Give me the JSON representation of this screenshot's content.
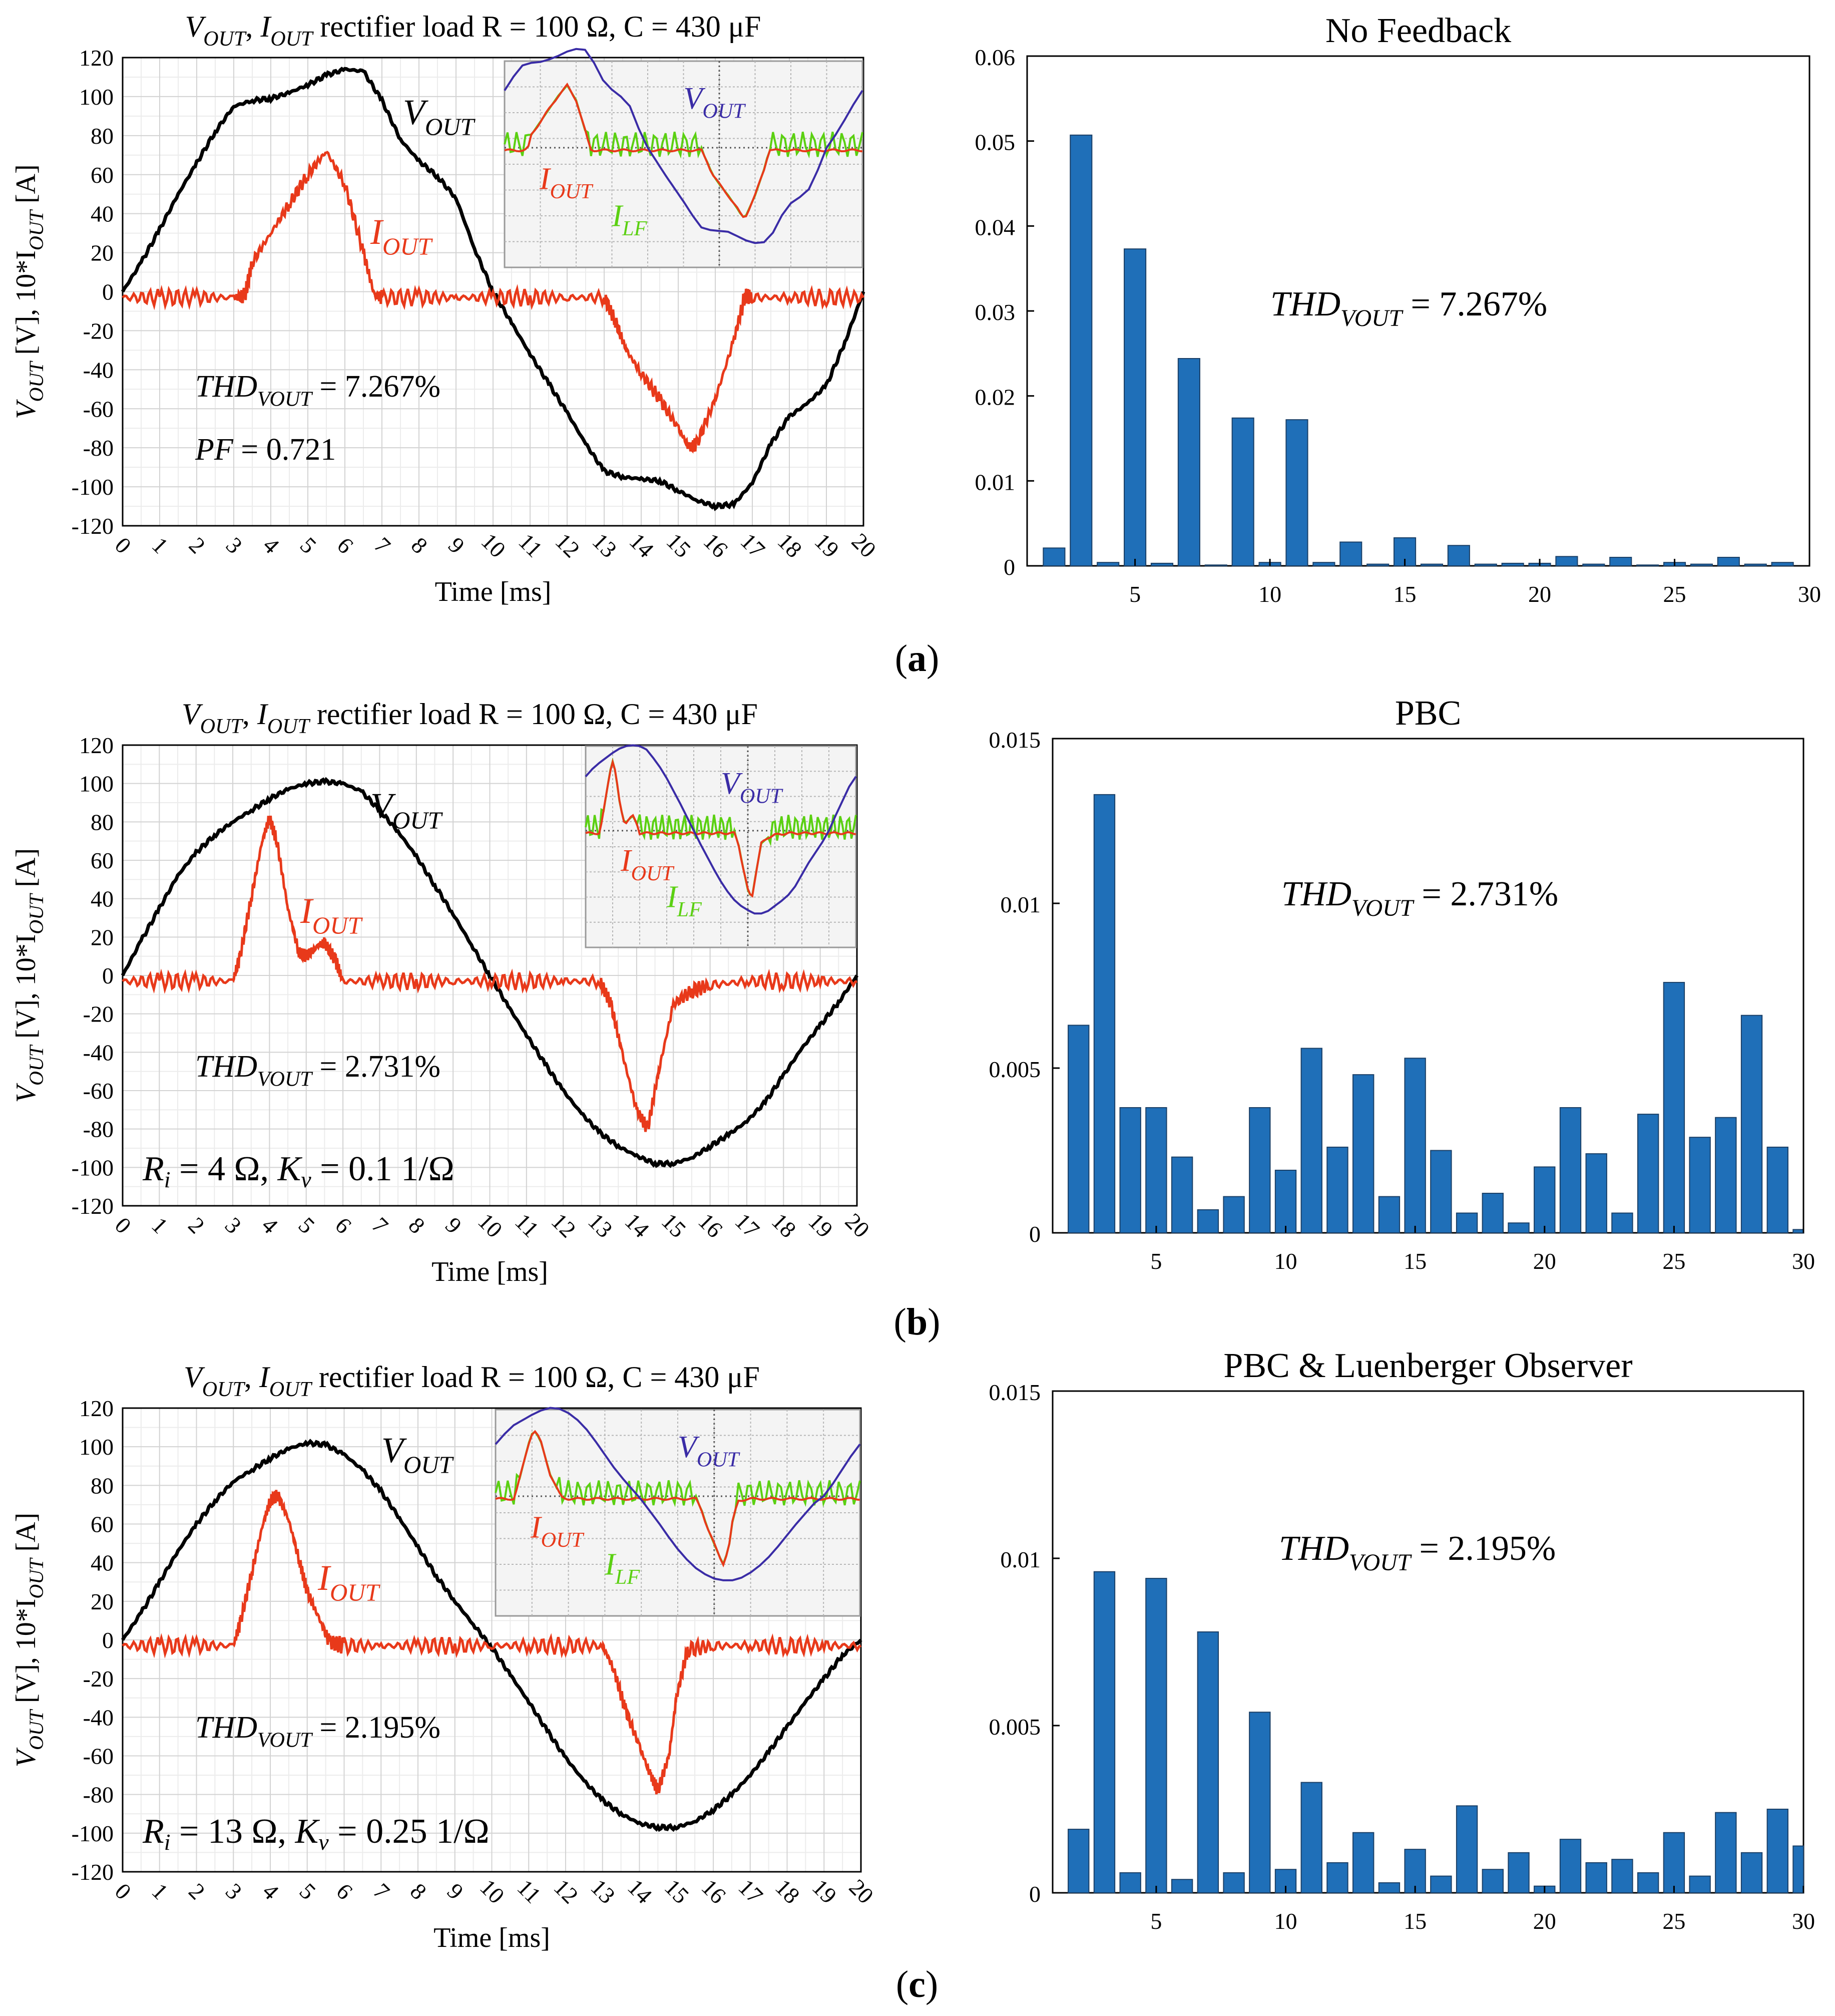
{
  "colors": {
    "vout": "#000000",
    "iout": "#e8391a",
    "bar": "#1f6fb8",
    "scope_vout": "#3a2ca6",
    "scope_ilf": "#5bd012",
    "scope_iout": "#e8391a"
  },
  "captions": [
    "(a)",
    "(b)",
    "(c)"
  ],
  "chart_data": [
    {
      "type": "line",
      "panel": "a",
      "title_parts": {
        "v": "V",
        "v_sub": "OUT",
        "sep": ",",
        "i": "I",
        "i_sub": "OUT",
        "rest": "rectifier load R = 100 Ω, C = 430 μF"
      },
      "ylabel_parts": {
        "v": "V",
        "v_sub": "OUT",
        "mid": "[V], 10*I",
        "i_sub": "OUT",
        "end": "[A]"
      },
      "xlabel": "Time [ms]",
      "xlim": [
        0,
        20
      ],
      "ylim": [
        -120,
        120
      ],
      "xticks": [
        "0",
        "1",
        "2",
        "3",
        "4",
        "5",
        "6",
        "7",
        "8",
        "9",
        "10",
        "11",
        "12",
        "13",
        "14",
        "15",
        "16",
        "17",
        "18",
        "19",
        "20"
      ],
      "yticks": [
        "120",
        "100",
        "80",
        "60",
        "40",
        "20",
        "0",
        "-20",
        "-40",
        "-60",
        "-80",
        "-100",
        "-120"
      ],
      "grid": true,
      "series": [
        {
          "name": "V_OUT",
          "x": [
            0,
            0.5,
            1,
            1.5,
            2,
            2.5,
            3,
            3.5,
            4,
            4.5,
            5,
            5.5,
            6,
            6.5,
            7,
            7.5,
            8,
            8.5,
            9,
            9.5,
            10,
            10.5,
            11,
            11.5,
            12,
            12.5,
            13,
            13.5,
            14,
            14.5,
            15,
            15.5,
            16,
            16.5,
            17,
            17.5,
            18,
            18.5,
            19,
            19.5,
            20
          ],
          "values": [
            0,
            15,
            32,
            50,
            66,
            82,
            95,
            98,
            99,
            102,
            106,
            111,
            114,
            113,
            98,
            78,
            67,
            59,
            48,
            22,
            0,
            -16,
            -32,
            -47,
            -62,
            -78,
            -92,
            -95,
            -96,
            -97,
            -102,
            -107,
            -110,
            -109,
            -98,
            -78,
            -64,
            -57,
            -48,
            -26,
            0
          ]
        },
        {
          "name": "I_OUT",
          "x": [
            0,
            1,
            2,
            3,
            3.3,
            3.5,
            4,
            4.5,
            5,
            5.5,
            6,
            6.5,
            6.8,
            7,
            8,
            9,
            10,
            11,
            12,
            13,
            13.3,
            13.6,
            14,
            14.5,
            15,
            15.3,
            15.5,
            16,
            16.5,
            16.8,
            17,
            18,
            19,
            20
          ],
          "values": [
            -3,
            -3,
            -3,
            -3,
            -2,
            15,
            30,
            45,
            60,
            72,
            55,
            20,
            -2,
            -3,
            -3,
            -3,
            -3,
            -3,
            -3,
            -3,
            -15,
            -30,
            -42,
            -55,
            -70,
            -80,
            -78,
            -55,
            -25,
            -2,
            -3,
            -3,
            -3,
            -3
          ]
        }
      ],
      "annotations": {
        "vout_label": {
          "v": "V",
          "sub": "OUT"
        },
        "iout_label": {
          "v": "I",
          "sub": "OUT"
        },
        "thd": {
          "v": "THD",
          "sub": "VOUT",
          "value": "= 7.267%"
        },
        "extra": "PF = 0.721"
      },
      "inset_labels": {
        "vout": {
          "v": "V",
          "sub": "OUT"
        },
        "iout": {
          "v": "I",
          "sub": "OUT"
        },
        "ilf": {
          "v": "I",
          "sub": "LF"
        }
      }
    },
    {
      "type": "bar",
      "panel": "a",
      "title": "No Feedback",
      "categories": [
        2,
        3,
        4,
        5,
        6,
        7,
        8,
        9,
        10,
        11,
        12,
        13,
        14,
        15,
        16,
        17,
        18,
        19,
        20,
        21,
        22,
        23,
        24,
        25,
        26,
        27,
        28,
        29
      ],
      "values": [
        0.0021,
        0.0507,
        0.0004,
        0.0373,
        0.0003,
        0.0244,
        0.0001,
        0.0174,
        0.0004,
        0.0172,
        0.0004,
        0.0028,
        0.0002,
        0.0033,
        0.0002,
        0.0024,
        0.0002,
        0.0003,
        0.0003,
        0.0011,
        0.0002,
        0.001,
        0.0001,
        0.0004,
        0.0002,
        0.001,
        0.0002,
        0.0004
      ],
      "xlim": [
        1,
        30
      ],
      "ylim": [
        0,
        0.06
      ],
      "xticks": [
        "5",
        "10",
        "15",
        "20",
        "25",
        "30"
      ],
      "yticks": [
        "0",
        "0.01",
        "0.02",
        "0.03",
        "0.04",
        "0.05",
        "0.06"
      ],
      "thd": {
        "v": "THD",
        "sub": "VOUT",
        "value": "= 7.267%"
      }
    },
    {
      "type": "line",
      "panel": "b",
      "title_parts": {
        "v": "V",
        "v_sub": "OUT",
        "sep": ",",
        "i": "I",
        "i_sub": "OUT",
        "rest": "rectifier load R = 100 Ω, C = 430 μF"
      },
      "ylabel_parts": {
        "v": "V",
        "v_sub": "OUT",
        "mid": "[V], 10*I",
        "i_sub": "OUT",
        "end": "[A]"
      },
      "xlabel": "Time [ms]",
      "xlim": [
        0,
        20
      ],
      "ylim": [
        -120,
        120
      ],
      "xticks": [
        "0",
        "1",
        "2",
        "3",
        "4",
        "5",
        "6",
        "7",
        "8",
        "9",
        "10",
        "11",
        "12",
        "13",
        "14",
        "15",
        "16",
        "17",
        "18",
        "19",
        "20"
      ],
      "yticks": [
        "120",
        "100",
        "80",
        "60",
        "40",
        "20",
        "0",
        "-20",
        "-40",
        "-60",
        "-80",
        "-100",
        "-120"
      ],
      "grid": true,
      "series": [
        {
          "name": "V_OUT",
          "x": [
            0,
            0.5,
            1,
            1.5,
            2,
            2.5,
            3,
            3.5,
            4,
            4.5,
            5,
            5.5,
            6,
            6.5,
            7,
            7.5,
            8,
            8.5,
            9,
            9.5,
            10,
            10.5,
            11,
            11.5,
            12,
            12.5,
            13,
            13.5,
            14,
            14.5,
            15,
            15.5,
            16,
            16.5,
            17,
            17.5,
            18,
            18.5,
            19,
            19.5,
            20
          ],
          "values": [
            0,
            18,
            35,
            52,
            64,
            73,
            80,
            86,
            92,
            97,
            100,
            101,
            100,
            96,
            86,
            75,
            62,
            47,
            32,
            16,
            0,
            -16,
            -31,
            -46,
            -60,
            -72,
            -82,
            -89,
            -94,
            -98,
            -98,
            -95,
            -89,
            -83,
            -76,
            -66,
            -52,
            -38,
            -26,
            -14,
            0
          ]
        },
        {
          "name": "I_OUT",
          "x": [
            0,
            1,
            2,
            3,
            3.2,
            3.5,
            3.8,
            4,
            4.2,
            4.5,
            4.8,
            5,
            5.3,
            5.5,
            5.8,
            6,
            7,
            8,
            9,
            10,
            11,
            12,
            13,
            13.3,
            13.6,
            14,
            14.3,
            14.6,
            15,
            15.5,
            16,
            17,
            18,
            19,
            20
          ],
          "values": [
            -3,
            -3,
            -3,
            -3,
            10,
            40,
            70,
            82,
            70,
            35,
            12,
            10,
            15,
            17,
            8,
            -3,
            -3,
            -3,
            -3,
            -3,
            -3,
            -3,
            -3,
            -15,
            -40,
            -70,
            -80,
            -50,
            -15,
            -8,
            -5,
            -3,
            -3,
            -3,
            -3
          ]
        }
      ],
      "annotations": {
        "vout_label": {
          "v": "V",
          "sub": "OUT"
        },
        "iout_label": {
          "v": "I",
          "sub": "OUT"
        },
        "thd": {
          "v": "THD",
          "sub": "VOUT",
          "value": "= 2.731%"
        },
        "extra": "R_i = 4 Ω, K_v = 0.1 1/Ω"
      },
      "inset_labels": {
        "vout": {
          "v": "V",
          "sub": "OUT"
        },
        "iout": {
          "v": "I",
          "sub": "OUT"
        },
        "ilf": {
          "v": "I",
          "sub": "LF"
        }
      }
    },
    {
      "type": "bar",
      "panel": "b",
      "title": "PBC",
      "categories": [
        2,
        3,
        4,
        5,
        6,
        7,
        8,
        9,
        10,
        11,
        12,
        13,
        14,
        15,
        16,
        17,
        18,
        19,
        20,
        21,
        22,
        23,
        24,
        25,
        26,
        27,
        28,
        29,
        30
      ],
      "values": [
        0.0063,
        0.0133,
        0.0038,
        0.0038,
        0.0023,
        0.0007,
        0.0011,
        0.0038,
        0.0019,
        0.0056,
        0.0026,
        0.0048,
        0.0011,
        0.0053,
        0.0025,
        0.0006,
        0.0012,
        0.0003,
        0.002,
        0.0038,
        0.0024,
        0.0006,
        0.0036,
        0.0076,
        0.0029,
        0.0035,
        0.0066,
        0.0026,
        0.0001
      ],
      "xlim": [
        1,
        30
      ],
      "ylim": [
        0,
        0.015
      ],
      "xticks": [
        "5",
        "10",
        "15",
        "20",
        "25",
        "30"
      ],
      "yticks": [
        "0",
        "0.005",
        "0.01",
        "0.015"
      ],
      "thd": {
        "v": "THD",
        "sub": "VOUT",
        "value": "= 2.731%"
      }
    },
    {
      "type": "line",
      "panel": "c",
      "title_parts": {
        "v": "V",
        "v_sub": "OUT",
        "sep": ",",
        "i": "I",
        "i_sub": "OUT",
        "rest": "rectifier load R = 100 Ω, C = 430 μF"
      },
      "ylabel_parts": {
        "v": "V",
        "v_sub": "OUT",
        "mid": "[V], 10*I",
        "i_sub": "OUT",
        "end": "[A]"
      },
      "xlabel": "Time [ms]",
      "xlim": [
        0,
        20
      ],
      "ylim": [
        -120,
        120
      ],
      "xticks": [
        "0",
        "1",
        "2",
        "3",
        "4",
        "5",
        "6",
        "7",
        "8",
        "9",
        "10",
        "11",
        "12",
        "13",
        "14",
        "15",
        "16",
        "17",
        "18",
        "19",
        "20"
      ],
      "yticks": [
        "120",
        "100",
        "80",
        "60",
        "40",
        "20",
        "0",
        "-20",
        "-40",
        "-60",
        "-80",
        "-100",
        "-120"
      ],
      "grid": true,
      "series": [
        {
          "name": "V_OUT",
          "x": [
            0,
            0.5,
            1,
            1.5,
            2,
            2.5,
            3,
            3.5,
            4,
            4.5,
            5,
            5.5,
            6,
            6.5,
            7,
            7.5,
            8,
            8.5,
            9,
            9.5,
            10,
            10.5,
            11,
            11.5,
            12,
            12.5,
            13,
            13.5,
            14,
            14.5,
            15,
            15.5,
            16,
            16.5,
            17,
            17.5,
            18,
            18.5,
            19,
            19.5,
            20
          ],
          "values": [
            0,
            14,
            30,
            46,
            60,
            72,
            82,
            88,
            94,
            99,
            102,
            101,
            96,
            88,
            77,
            63,
            48,
            33,
            20,
            8,
            -4,
            -18,
            -32,
            -47,
            -61,
            -73,
            -83,
            -90,
            -95,
            -97,
            -97,
            -94,
            -88,
            -80,
            -70,
            -58,
            -45,
            -32,
            -20,
            -8,
            0
          ]
        },
        {
          "name": "I_OUT",
          "x": [
            0,
            1,
            2,
            3,
            3.2,
            3.5,
            3.8,
            4,
            4.2,
            4.5,
            4.8,
            5,
            5.3,
            5.6,
            6,
            7,
            8,
            9,
            10,
            11,
            12,
            13,
            13.3,
            13.6,
            14,
            14.3,
            14.5,
            14.8,
            15,
            15.3,
            16,
            17,
            18,
            19,
            20
          ],
          "values": [
            -3,
            -3,
            -3,
            -3,
            10,
            35,
            60,
            72,
            75,
            62,
            40,
            25,
            12,
            -1,
            -3,
            -3,
            -3,
            -3,
            -3,
            -3,
            -3,
            -3,
            -15,
            -35,
            -55,
            -70,
            -78,
            -60,
            -30,
            -5,
            -3,
            -3,
            -3,
            -3,
            -3
          ]
        }
      ],
      "annotations": {
        "vout_label": {
          "v": "V",
          "sub": "OUT"
        },
        "iout_label": {
          "v": "I",
          "sub": "OUT"
        },
        "thd": {
          "v": "THD",
          "sub": "VOUT",
          "value": "= 2.195%"
        },
        "extra": "R_i = 13 Ω, K_v = 0.25 1/Ω"
      },
      "inset_labels": {
        "vout": {
          "v": "V",
          "sub": "OUT"
        },
        "iout": {
          "v": "I",
          "sub": "OUT"
        },
        "ilf": {
          "v": "I",
          "sub": "LF"
        }
      }
    },
    {
      "type": "bar",
      "panel": "c",
      "title": "PBC & Luenberger Observer",
      "categories": [
        2,
        3,
        4,
        5,
        6,
        7,
        8,
        9,
        10,
        11,
        12,
        13,
        14,
        15,
        16,
        17,
        18,
        19,
        20,
        21,
        22,
        23,
        24,
        25,
        26,
        27,
        28,
        29,
        30
      ],
      "values": [
        0.0019,
        0.0096,
        0.0006,
        0.0094,
        0.0004,
        0.0078,
        0.0006,
        0.0054,
        0.0007,
        0.0033,
        0.0009,
        0.0018,
        0.0003,
        0.0013,
        0.0005,
        0.0026,
        0.0007,
        0.0012,
        0.0002,
        0.0016,
        0.0009,
        0.001,
        0.0006,
        0.0018,
        0.0005,
        0.0024,
        0.0012,
        0.0025,
        0.0014
      ],
      "xlim": [
        1,
        30
      ],
      "ylim": [
        0,
        0.015
      ],
      "xticks": [
        "5",
        "10",
        "15",
        "20",
        "25",
        "30"
      ],
      "yticks": [
        "0",
        "0.005",
        "0.01",
        "0.015"
      ],
      "thd": {
        "v": "THD",
        "sub": "VOUT",
        "value": "= 2.195%"
      }
    }
  ]
}
